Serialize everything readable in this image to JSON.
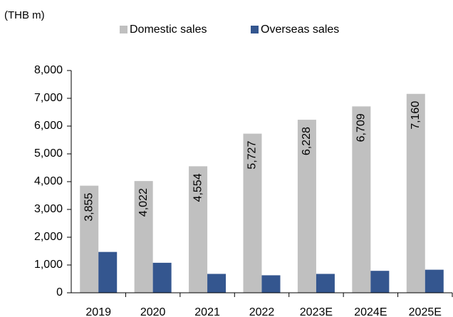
{
  "chart_data": {
    "type": "bar",
    "unit_label": "(THB m)",
    "categories": [
      "2019",
      "2020",
      "2021",
      "2022",
      "2023E",
      "2024E",
      "2025E"
    ],
    "series": [
      {
        "name": "Domestic sales",
        "color": "#c0c0c0",
        "values": [
          3855,
          4022,
          4554,
          5727,
          6228,
          6709,
          7160
        ],
        "value_labels": [
          "3,855",
          "4,022",
          "4,554",
          "5,727",
          "6,228",
          "6,709",
          "7,160"
        ]
      },
      {
        "name": "Overseas sales",
        "color": "#34568f",
        "values": [
          1470,
          1080,
          680,
          630,
          680,
          790,
          830
        ]
      }
    ],
    "ylim": [
      0,
      8000
    ],
    "yticks": [
      0,
      {
        "value": 1000,
        "label": "1,000"
      },
      {
        "value": 2000,
        "label": "2,000"
      },
      {
        "value": 3000,
        "label": "3,000"
      },
      {
        "value": 4000,
        "label": "4,000"
      },
      {
        "value": 5000,
        "label": "5,000"
      },
      {
        "value": 6000,
        "label": "6,000"
      },
      {
        "value": 7000,
        "label": "7,000"
      },
      {
        "value": 8000,
        "label": "8,000"
      }
    ],
    "legend": "top"
  }
}
